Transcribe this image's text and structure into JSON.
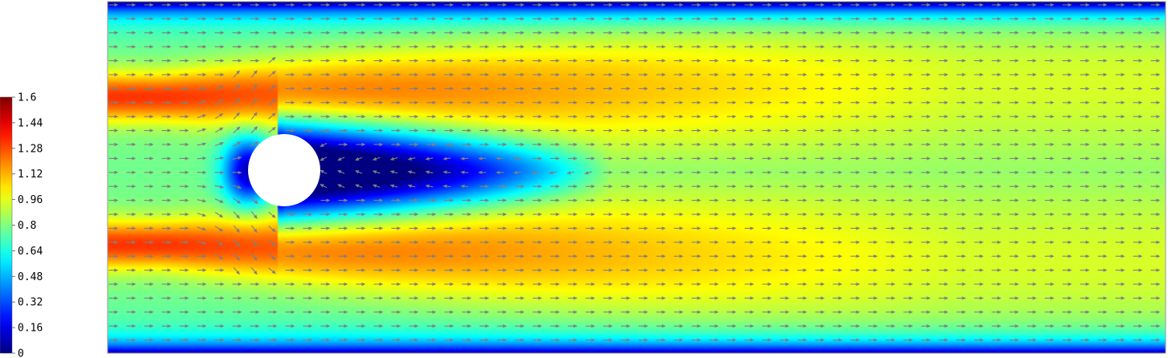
{
  "chart_data": {
    "type": "heatmap",
    "title": "",
    "xlabel": "",
    "ylabel": "",
    "colormap": "jet",
    "colorbar": {
      "min": 0,
      "max": 1.6,
      "ticks": [
        0,
        0.16,
        0.32,
        0.48,
        0.64,
        0.8,
        0.96,
        1.12,
        1.28,
        1.44,
        1.6
      ],
      "tick_labels": [
        "0",
        "0.16",
        "0.32",
        "0.48",
        "0.64",
        "0.8",
        "0.96",
        "1.12",
        "1.28",
        "1.44",
        "1.6"
      ],
      "placement": "left"
    },
    "field": "velocity magnitude with velocity vector arrows",
    "obstacle": {
      "shape": "circle",
      "color": "#ffffff"
    },
    "flow_direction": "left-to-right",
    "features": {
      "wake": "low-velocity recirculation region downstream of the cylinder",
      "peak_regions": "high-velocity bands above and below the cylinder",
      "walls": "low-velocity boundary layers at top and bottom walls"
    },
    "arrow_color": "#808080"
  }
}
